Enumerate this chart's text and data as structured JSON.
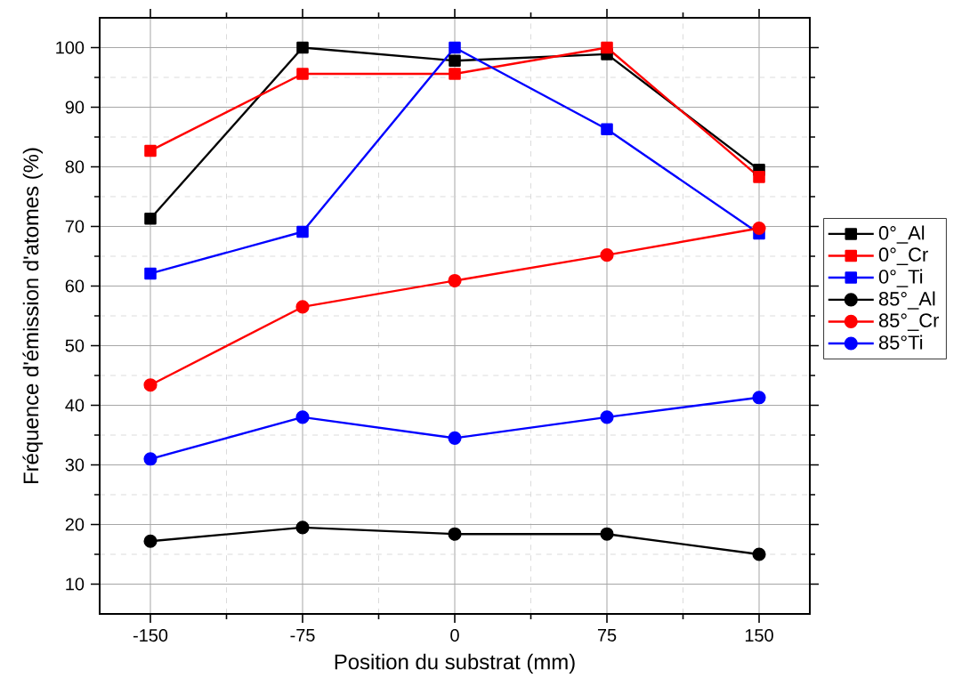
{
  "chart_data": {
    "type": "line",
    "xlabel": "Position du substrat (mm)",
    "ylabel": "Fréquence d'émission d'atomes (%)",
    "x": [
      -150,
      -75,
      0,
      75,
      150
    ],
    "series": [
      {
        "name": "0°_Al",
        "color": "#000000",
        "marker": "square",
        "values": [
          71.3,
          100,
          97.8,
          98.9,
          79.5
        ]
      },
      {
        "name": "0°_Cr",
        "color": "#ff0000",
        "marker": "square",
        "values": [
          82.7,
          95.6,
          95.6,
          100,
          78.3
        ]
      },
      {
        "name": "0°_Ti",
        "color": "#0000ff",
        "marker": "square",
        "values": [
          62.1,
          69.1,
          100,
          86.3,
          68.8
        ]
      },
      {
        "name": "85°_Al",
        "color": "#000000",
        "marker": "circle",
        "values": [
          17.2,
          19.5,
          18.4,
          18.4,
          15.0
        ]
      },
      {
        "name": "85°_Cr",
        "color": "#ff0000",
        "marker": "circle",
        "values": [
          43.4,
          56.5,
          60.9,
          65.2,
          69.7
        ]
      },
      {
        "name": "85°Ti",
        "color": "#0000ff",
        "marker": "circle",
        "values": [
          31.0,
          38.0,
          34.5,
          38.0,
          41.3
        ]
      }
    ],
    "xlim": [
      -175,
      175
    ],
    "ylim": [
      5,
      105
    ],
    "xticks": [
      -150,
      -75,
      0,
      75,
      150
    ],
    "yticks": [
      10,
      20,
      30,
      40,
      50,
      60,
      70,
      80,
      90,
      100
    ],
    "grid": true,
    "legend": "right",
    "line_style": "solid"
  }
}
